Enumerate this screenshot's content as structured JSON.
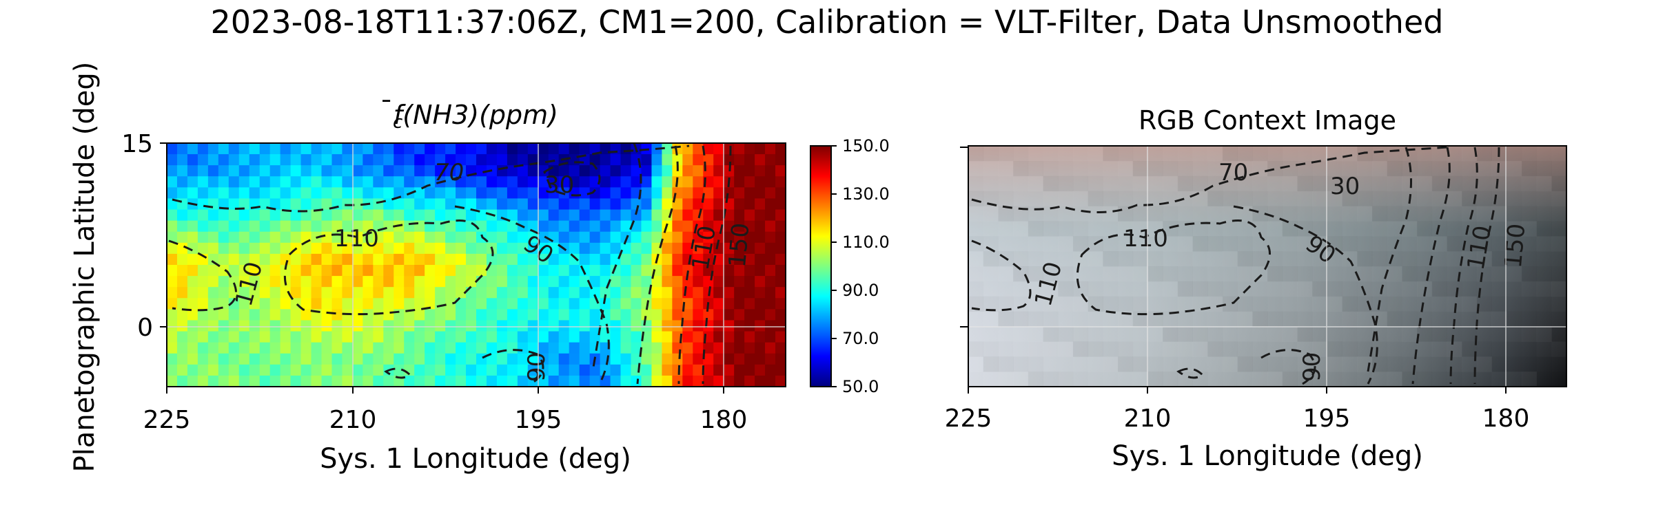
{
  "figure": {
    "suptitle": "2023-08-18T11:37:06Z, CM1=200, Calibration = VLT-Filter, Data Unsmoothed"
  },
  "chart_data": [
    {
      "type": "heatmap",
      "title": "f̄c(NH3)(ppm)",
      "title_parts": {
        "f": "f",
        "bar": "̄",
        "sub": "c",
        "rest": "(NH3)(ppm)"
      },
      "xlabel": "Sys. 1 Longitude (deg)",
      "ylabel": "Planetographic Latitude (deg)",
      "x_direction": "decreasing to the right",
      "xlim": [
        225,
        172
      ],
      "ylim": [
        -5,
        15
      ],
      "xticks": [
        "225",
        "210",
        "195",
        "180"
      ],
      "xtick_values": [
        225,
        210,
        195,
        180
      ],
      "yticks": [
        "0",
        "15"
      ],
      "ytick_values": [
        0,
        15
      ],
      "grid": true,
      "colormap": "jet",
      "colorbar": {
        "range": [
          50,
          150
        ],
        "ticks": [
          "150.0",
          "130.0",
          "110.0",
          "90.0",
          "70.0",
          "50.0"
        ],
        "tick_values": [
          150,
          130,
          110,
          90,
          70,
          50
        ]
      },
      "value_grid": {
        "longitudes": [
          224,
          220,
          216,
          212,
          208,
          204,
          200,
          196,
          192,
          188,
          184,
          181,
          176
        ],
        "latitudes": [
          13,
          9,
          5,
          1,
          -3
        ],
        "rows": [
          [
            75,
            78,
            80,
            82,
            75,
            68,
            65,
            55,
            52,
            52,
            58,
            120,
            150
          ],
          [
            92,
            90,
            92,
            98,
            100,
            95,
            90,
            85,
            75,
            72,
            82,
            130,
            150
          ],
          [
            118,
            105,
            112,
            120,
            118,
            122,
            110,
            98,
            88,
            85,
            100,
            135,
            150
          ],
          [
            110,
            100,
            105,
            112,
            110,
            105,
            98,
            92,
            88,
            90,
            102,
            128,
            150
          ],
          [
            100,
            100,
            98,
            100,
            100,
            95,
            90,
            88,
            78,
            75,
            95,
            132,
            150
          ]
        ]
      },
      "contour_labels": [
        "70",
        "30",
        "110",
        "90",
        "110",
        "110",
        "150",
        "90"
      ]
    },
    {
      "type": "image",
      "title": "RGB Context Image",
      "xlabel": "Sys. 1 Longitude (deg)",
      "xlim": [
        225,
        172
      ],
      "ylim": [
        -5,
        15
      ],
      "xticks": [
        "225",
        "210",
        "195",
        "180"
      ],
      "xtick_values": [
        225,
        210,
        195,
        180
      ],
      "grid": true,
      "contour_labels": [
        "70",
        "30",
        "110",
        "90",
        "110",
        "110",
        "150",
        "90"
      ]
    }
  ]
}
